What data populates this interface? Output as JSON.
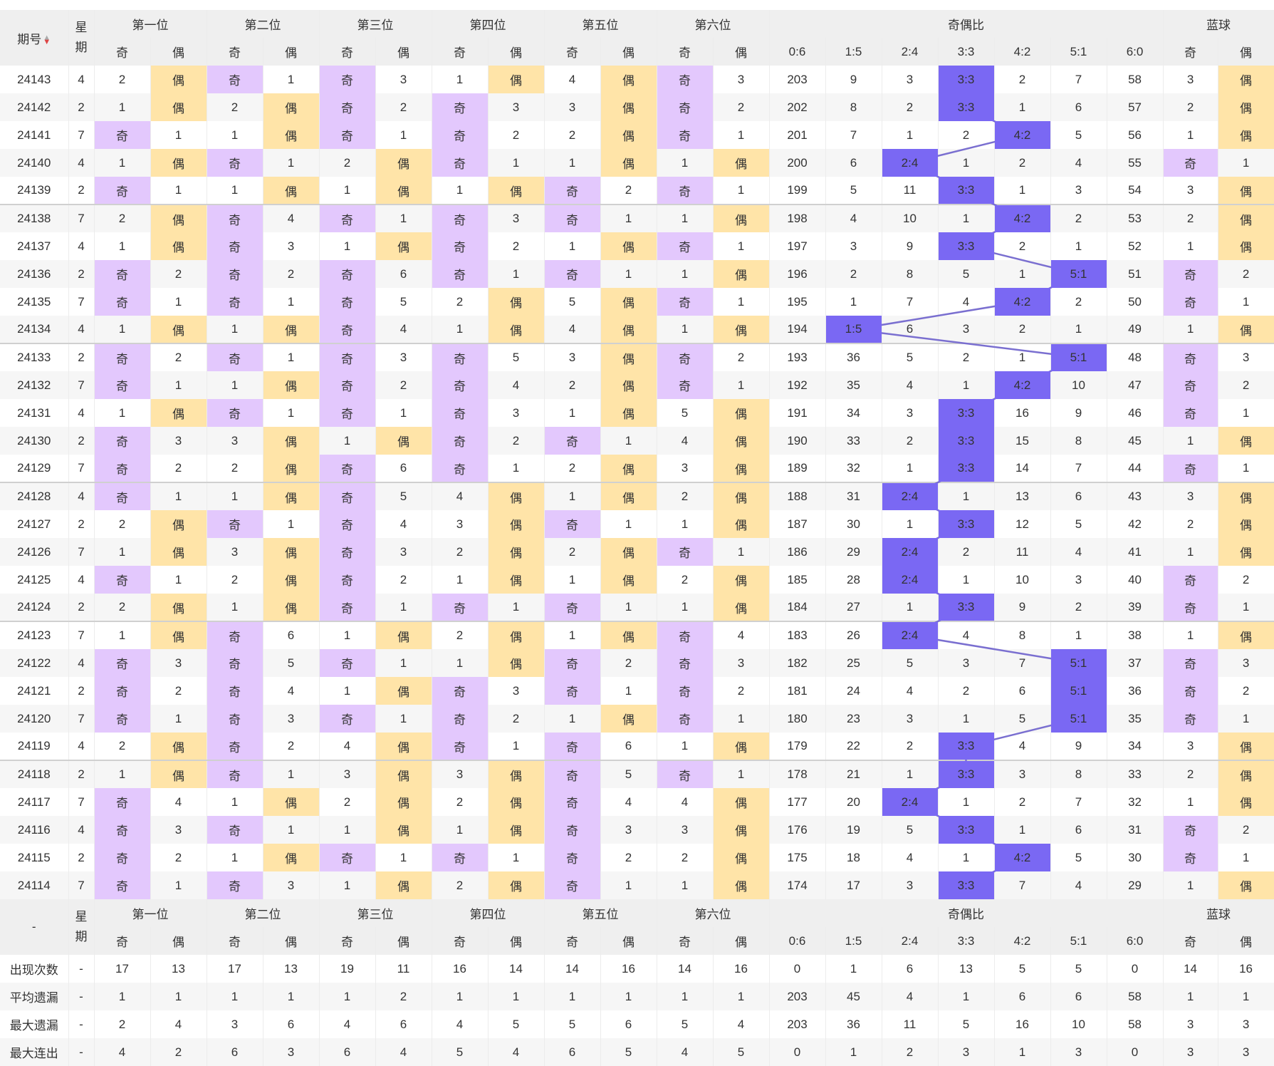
{
  "header": {
    "issue_label": "期号",
    "weekday_label": "星期",
    "positions": [
      "第一位",
      "第二位",
      "第三位",
      "第四位",
      "第五位",
      "第六位"
    ],
    "ratio_label": "奇偶比",
    "blue_label": "蓝球",
    "odd": "奇",
    "even": "偶",
    "ratios": [
      "0:6",
      "1:5",
      "2:4",
      "3:3",
      "4:2",
      "5:1",
      "6:0"
    ]
  },
  "footer_dash": "-",
  "colors": {
    "odd_bg": "#e3c8fd",
    "even_bg": "#ffe4a8",
    "ratio_bg": "#7a68f3",
    "line": "#7a6fd0"
  },
  "rows": [
    {
      "issue": "24143",
      "wd": "4",
      "c": [
        "2",
        "偶",
        "奇",
        "1",
        "奇",
        "3",
        "1",
        "偶",
        "4",
        "偶",
        "奇",
        "3"
      ],
      "r": [
        "203",
        "9",
        "3",
        "3:3",
        "2",
        "7",
        "58"
      ],
      "b": [
        "3",
        "偶"
      ]
    },
    {
      "issue": "24142",
      "wd": "2",
      "c": [
        "1",
        "偶",
        "2",
        "偶",
        "奇",
        "2",
        "奇",
        "3",
        "3",
        "偶",
        "奇",
        "2"
      ],
      "r": [
        "202",
        "8",
        "2",
        "3:3",
        "1",
        "6",
        "57"
      ],
      "b": [
        "2",
        "偶"
      ]
    },
    {
      "issue": "24141",
      "wd": "7",
      "c": [
        "奇",
        "1",
        "1",
        "偶",
        "奇",
        "1",
        "奇",
        "2",
        "2",
        "偶",
        "奇",
        "1"
      ],
      "r": [
        "201",
        "7",
        "1",
        "2",
        "4:2",
        "5",
        "56"
      ],
      "b": [
        "1",
        "偶"
      ]
    },
    {
      "issue": "24140",
      "wd": "4",
      "c": [
        "1",
        "偶",
        "奇",
        "1",
        "2",
        "偶",
        "奇",
        "1",
        "1",
        "偶",
        "1",
        "偶"
      ],
      "r": [
        "200",
        "6",
        "2:4",
        "1",
        "2",
        "4",
        "55"
      ],
      "b": [
        "奇",
        "1"
      ]
    },
    {
      "issue": "24139",
      "wd": "2",
      "c": [
        "奇",
        "1",
        "1",
        "偶",
        "1",
        "偶",
        "1",
        "偶",
        "奇",
        "2",
        "奇",
        "1"
      ],
      "r": [
        "199",
        "5",
        "11",
        "3:3",
        "1",
        "3",
        "54"
      ],
      "b": [
        "3",
        "偶"
      ]
    },
    {
      "issue": "24138",
      "wd": "7",
      "c": [
        "2",
        "偶",
        "奇",
        "4",
        "奇",
        "1",
        "奇",
        "3",
        "奇",
        "1",
        "1",
        "偶"
      ],
      "r": [
        "198",
        "4",
        "10",
        "1",
        "4:2",
        "2",
        "53"
      ],
      "b": [
        "2",
        "偶"
      ]
    },
    {
      "issue": "24137",
      "wd": "4",
      "c": [
        "1",
        "偶",
        "奇",
        "3",
        "1",
        "偶",
        "奇",
        "2",
        "1",
        "偶",
        "奇",
        "1"
      ],
      "r": [
        "197",
        "3",
        "9",
        "3:3",
        "2",
        "1",
        "52"
      ],
      "b": [
        "1",
        "偶"
      ]
    },
    {
      "issue": "24136",
      "wd": "2",
      "c": [
        "奇",
        "2",
        "奇",
        "2",
        "奇",
        "6",
        "奇",
        "1",
        "奇",
        "1",
        "1",
        "偶"
      ],
      "r": [
        "196",
        "2",
        "8",
        "5",
        "1",
        "5:1",
        "51"
      ],
      "b": [
        "奇",
        "2"
      ]
    },
    {
      "issue": "24135",
      "wd": "7",
      "c": [
        "奇",
        "1",
        "奇",
        "1",
        "奇",
        "5",
        "2",
        "偶",
        "5",
        "偶",
        "奇",
        "1"
      ],
      "r": [
        "195",
        "1",
        "7",
        "4",
        "4:2",
        "2",
        "50"
      ],
      "b": [
        "奇",
        "1"
      ]
    },
    {
      "issue": "24134",
      "wd": "4",
      "c": [
        "1",
        "偶",
        "1",
        "偶",
        "奇",
        "4",
        "1",
        "偶",
        "4",
        "偶",
        "1",
        "偶"
      ],
      "r": [
        "194",
        "1:5",
        "6",
        "3",
        "2",
        "1",
        "49"
      ],
      "b": [
        "1",
        "偶"
      ]
    },
    {
      "issue": "24133",
      "wd": "2",
      "c": [
        "奇",
        "2",
        "奇",
        "1",
        "奇",
        "3",
        "奇",
        "5",
        "3",
        "偶",
        "奇",
        "2"
      ],
      "r": [
        "193",
        "36",
        "5",
        "2",
        "1",
        "5:1",
        "48"
      ],
      "b": [
        "奇",
        "3"
      ]
    },
    {
      "issue": "24132",
      "wd": "7",
      "c": [
        "奇",
        "1",
        "1",
        "偶",
        "奇",
        "2",
        "奇",
        "4",
        "2",
        "偶",
        "奇",
        "1"
      ],
      "r": [
        "192",
        "35",
        "4",
        "1",
        "4:2",
        "10",
        "47"
      ],
      "b": [
        "奇",
        "2"
      ]
    },
    {
      "issue": "24131",
      "wd": "4",
      "c": [
        "1",
        "偶",
        "奇",
        "1",
        "奇",
        "1",
        "奇",
        "3",
        "1",
        "偶",
        "5",
        "偶"
      ],
      "r": [
        "191",
        "34",
        "3",
        "3:3",
        "16",
        "9",
        "46"
      ],
      "b": [
        "奇",
        "1"
      ]
    },
    {
      "issue": "24130",
      "wd": "2",
      "c": [
        "奇",
        "3",
        "3",
        "偶",
        "1",
        "偶",
        "奇",
        "2",
        "奇",
        "1",
        "4",
        "偶"
      ],
      "r": [
        "190",
        "33",
        "2",
        "3:3",
        "15",
        "8",
        "45"
      ],
      "b": [
        "1",
        "偶"
      ]
    },
    {
      "issue": "24129",
      "wd": "7",
      "c": [
        "奇",
        "2",
        "2",
        "偶",
        "奇",
        "6",
        "奇",
        "1",
        "2",
        "偶",
        "3",
        "偶"
      ],
      "r": [
        "189",
        "32",
        "1",
        "3:3",
        "14",
        "7",
        "44"
      ],
      "b": [
        "奇",
        "1"
      ]
    },
    {
      "issue": "24128",
      "wd": "4",
      "c": [
        "奇",
        "1",
        "1",
        "偶",
        "奇",
        "5",
        "4",
        "偶",
        "1",
        "偶",
        "2",
        "偶"
      ],
      "r": [
        "188",
        "31",
        "2:4",
        "1",
        "13",
        "6",
        "43"
      ],
      "b": [
        "3",
        "偶"
      ]
    },
    {
      "issue": "24127",
      "wd": "2",
      "c": [
        "2",
        "偶",
        "奇",
        "1",
        "奇",
        "4",
        "3",
        "偶",
        "奇",
        "1",
        "1",
        "偶"
      ],
      "r": [
        "187",
        "30",
        "1",
        "3:3",
        "12",
        "5",
        "42"
      ],
      "b": [
        "2",
        "偶"
      ]
    },
    {
      "issue": "24126",
      "wd": "7",
      "c": [
        "1",
        "偶",
        "3",
        "偶",
        "奇",
        "3",
        "2",
        "偶",
        "2",
        "偶",
        "奇",
        "1"
      ],
      "r": [
        "186",
        "29",
        "2:4",
        "2",
        "11",
        "4",
        "41"
      ],
      "b": [
        "1",
        "偶"
      ]
    },
    {
      "issue": "24125",
      "wd": "4",
      "c": [
        "奇",
        "1",
        "2",
        "偶",
        "奇",
        "2",
        "1",
        "偶",
        "1",
        "偶",
        "2",
        "偶"
      ],
      "r": [
        "185",
        "28",
        "2:4",
        "1",
        "10",
        "3",
        "40"
      ],
      "b": [
        "奇",
        "2"
      ]
    },
    {
      "issue": "24124",
      "wd": "2",
      "c": [
        "2",
        "偶",
        "1",
        "偶",
        "奇",
        "1",
        "奇",
        "1",
        "奇",
        "1",
        "1",
        "偶"
      ],
      "r": [
        "184",
        "27",
        "1",
        "3:3",
        "9",
        "2",
        "39"
      ],
      "b": [
        "奇",
        "1"
      ]
    },
    {
      "issue": "24123",
      "wd": "7",
      "c": [
        "1",
        "偶",
        "奇",
        "6",
        "1",
        "偶",
        "2",
        "偶",
        "1",
        "偶",
        "奇",
        "4"
      ],
      "r": [
        "183",
        "26",
        "2:4",
        "4",
        "8",
        "1",
        "38"
      ],
      "b": [
        "1",
        "偶"
      ]
    },
    {
      "issue": "24122",
      "wd": "4",
      "c": [
        "奇",
        "3",
        "奇",
        "5",
        "奇",
        "1",
        "1",
        "偶",
        "奇",
        "2",
        "奇",
        "3"
      ],
      "r": [
        "182",
        "25",
        "5",
        "3",
        "7",
        "5:1",
        "37"
      ],
      "b": [
        "奇",
        "3"
      ]
    },
    {
      "issue": "24121",
      "wd": "2",
      "c": [
        "奇",
        "2",
        "奇",
        "4",
        "1",
        "偶",
        "奇",
        "3",
        "奇",
        "1",
        "奇",
        "2"
      ],
      "r": [
        "181",
        "24",
        "4",
        "2",
        "6",
        "5:1",
        "36"
      ],
      "b": [
        "奇",
        "2"
      ]
    },
    {
      "issue": "24120",
      "wd": "7",
      "c": [
        "奇",
        "1",
        "奇",
        "3",
        "奇",
        "1",
        "奇",
        "2",
        "1",
        "偶",
        "奇",
        "1"
      ],
      "r": [
        "180",
        "23",
        "3",
        "1",
        "5",
        "5:1",
        "35"
      ],
      "b": [
        "奇",
        "1"
      ]
    },
    {
      "issue": "24119",
      "wd": "4",
      "c": [
        "2",
        "偶",
        "奇",
        "2",
        "4",
        "偶",
        "奇",
        "1",
        "奇",
        "6",
        "1",
        "偶"
      ],
      "r": [
        "179",
        "22",
        "2",
        "3:3",
        "4",
        "9",
        "34"
      ],
      "b": [
        "3",
        "偶"
      ]
    },
    {
      "issue": "24118",
      "wd": "2",
      "c": [
        "1",
        "偶",
        "奇",
        "1",
        "3",
        "偶",
        "3",
        "偶",
        "奇",
        "5",
        "奇",
        "1"
      ],
      "r": [
        "178",
        "21",
        "1",
        "3:3",
        "3",
        "8",
        "33"
      ],
      "b": [
        "2",
        "偶"
      ]
    },
    {
      "issue": "24117",
      "wd": "7",
      "c": [
        "奇",
        "4",
        "1",
        "偶",
        "2",
        "偶",
        "2",
        "偶",
        "奇",
        "4",
        "4",
        "偶"
      ],
      "r": [
        "177",
        "20",
        "2:4",
        "1",
        "2",
        "7",
        "32"
      ],
      "b": [
        "1",
        "偶"
      ]
    },
    {
      "issue": "24116",
      "wd": "4",
      "c": [
        "奇",
        "3",
        "奇",
        "1",
        "1",
        "偶",
        "1",
        "偶",
        "奇",
        "3",
        "3",
        "偶"
      ],
      "r": [
        "176",
        "19",
        "5",
        "3:3",
        "1",
        "6",
        "31"
      ],
      "b": [
        "奇",
        "2"
      ]
    },
    {
      "issue": "24115",
      "wd": "2",
      "c": [
        "奇",
        "2",
        "1",
        "偶",
        "奇",
        "1",
        "奇",
        "1",
        "奇",
        "2",
        "2",
        "偶"
      ],
      "r": [
        "175",
        "18",
        "4",
        "1",
        "4:2",
        "5",
        "30"
      ],
      "b": [
        "奇",
        "1"
      ]
    },
    {
      "issue": "24114",
      "wd": "7",
      "c": [
        "奇",
        "1",
        "奇",
        "3",
        "1",
        "偶",
        "2",
        "偶",
        "奇",
        "1",
        "1",
        "偶"
      ],
      "r": [
        "174",
        "17",
        "3",
        "3:3",
        "7",
        "4",
        "29"
      ],
      "b": [
        "1",
        "偶"
      ]
    }
  ],
  "stats": [
    {
      "label": "出现次数",
      "dash": "-",
      "vals": [
        "17",
        "13",
        "17",
        "13",
        "19",
        "11",
        "16",
        "14",
        "14",
        "16",
        "14",
        "16",
        "0",
        "1",
        "6",
        "13",
        "5",
        "5",
        "0",
        "14",
        "16"
      ]
    },
    {
      "label": "平均遗漏",
      "dash": "-",
      "vals": [
        "1",
        "1",
        "1",
        "1",
        "1",
        "2",
        "1",
        "1",
        "1",
        "1",
        "1",
        "1",
        "203",
        "45",
        "4",
        "1",
        "6",
        "6",
        "58",
        "1",
        "1"
      ]
    },
    {
      "label": "最大遗漏",
      "dash": "-",
      "vals": [
        "2",
        "4",
        "3",
        "6",
        "4",
        "6",
        "4",
        "5",
        "5",
        "6",
        "5",
        "4",
        "203",
        "36",
        "11",
        "5",
        "16",
        "10",
        "58",
        "3",
        "3"
      ]
    },
    {
      "label": "最大连出",
      "dash": "-",
      "vals": [
        "4",
        "2",
        "6",
        "3",
        "6",
        "4",
        "5",
        "4",
        "6",
        "5",
        "4",
        "5",
        "0",
        "1",
        "2",
        "3",
        "1",
        "3",
        "0",
        "3",
        "3"
      ]
    }
  ]
}
